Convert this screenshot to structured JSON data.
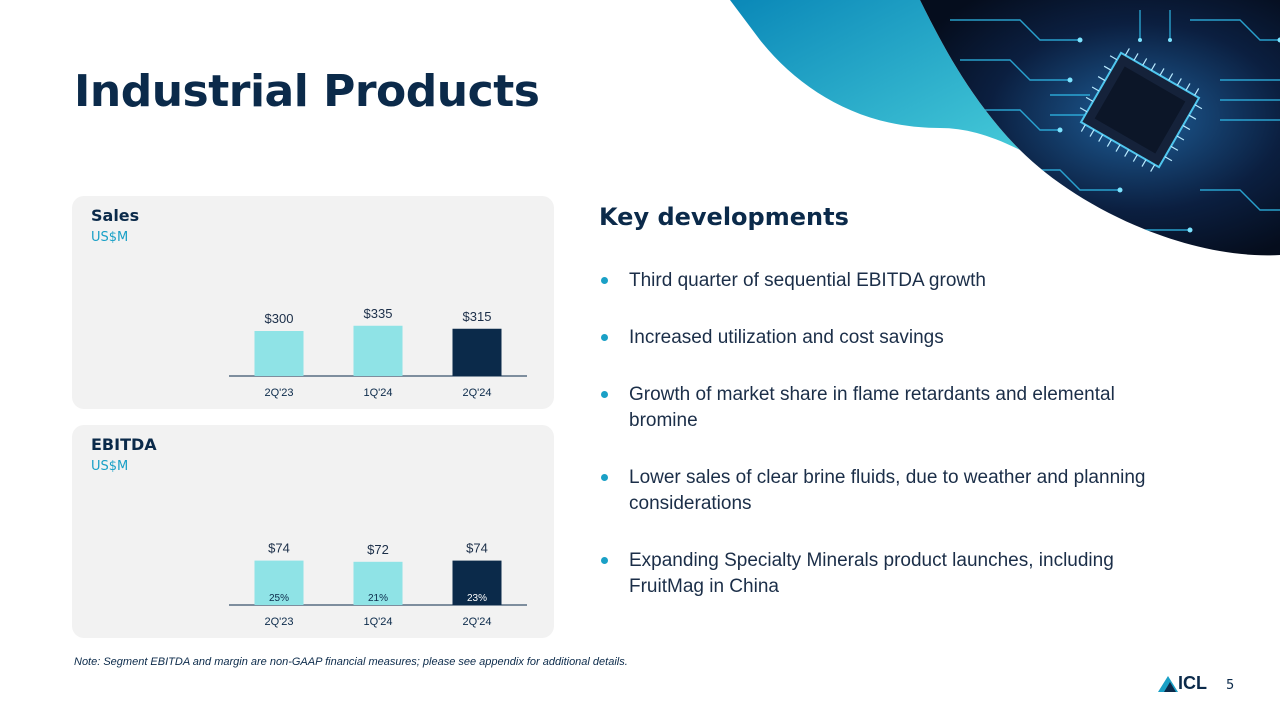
{
  "slide": {
    "title": "Industrial Products",
    "note": "Note: Segment EBITDA and margin are non-GAAP financial measures; please see appendix for additional details.",
    "page_number": "5",
    "logo_text": "ICL"
  },
  "key_developments": {
    "title": "Key developments",
    "items": [
      "Third quarter of sequential EBITDA growth",
      "Increased utilization and cost savings",
      "Growth of market share in flame retardants and elemental bromine",
      "Lower sales of clear brine fluids, due to weather and planning considerations",
      "Expanding Specialty Minerals product launches, including FruitMag in China"
    ]
  },
  "colors": {
    "light_bar": "#8fe3e6",
    "dark_bar": "#0b2a4a",
    "accent": "#1aa0c6"
  },
  "chart_data": [
    {
      "type": "bar",
      "title": "Sales",
      "subtitle": "US$M",
      "categories": [
        "2Q'23",
        "1Q'24",
        "2Q'24"
      ],
      "values": [
        300,
        335,
        315
      ],
      "value_labels": [
        "$300",
        "$335",
        "$315"
      ],
      "ylim": [
        0,
        1000
      ]
    },
    {
      "type": "bar",
      "title": "EBITDA",
      "subtitle": "US$M",
      "categories": [
        "2Q'23",
        "1Q'24",
        "2Q'24"
      ],
      "values": [
        74,
        72,
        74
      ],
      "value_labels": [
        "$74",
        "$72",
        "$74"
      ],
      "margin_labels": [
        "25%",
        "21%",
        "23%"
      ],
      "ylim": [
        0,
        250
      ]
    }
  ]
}
